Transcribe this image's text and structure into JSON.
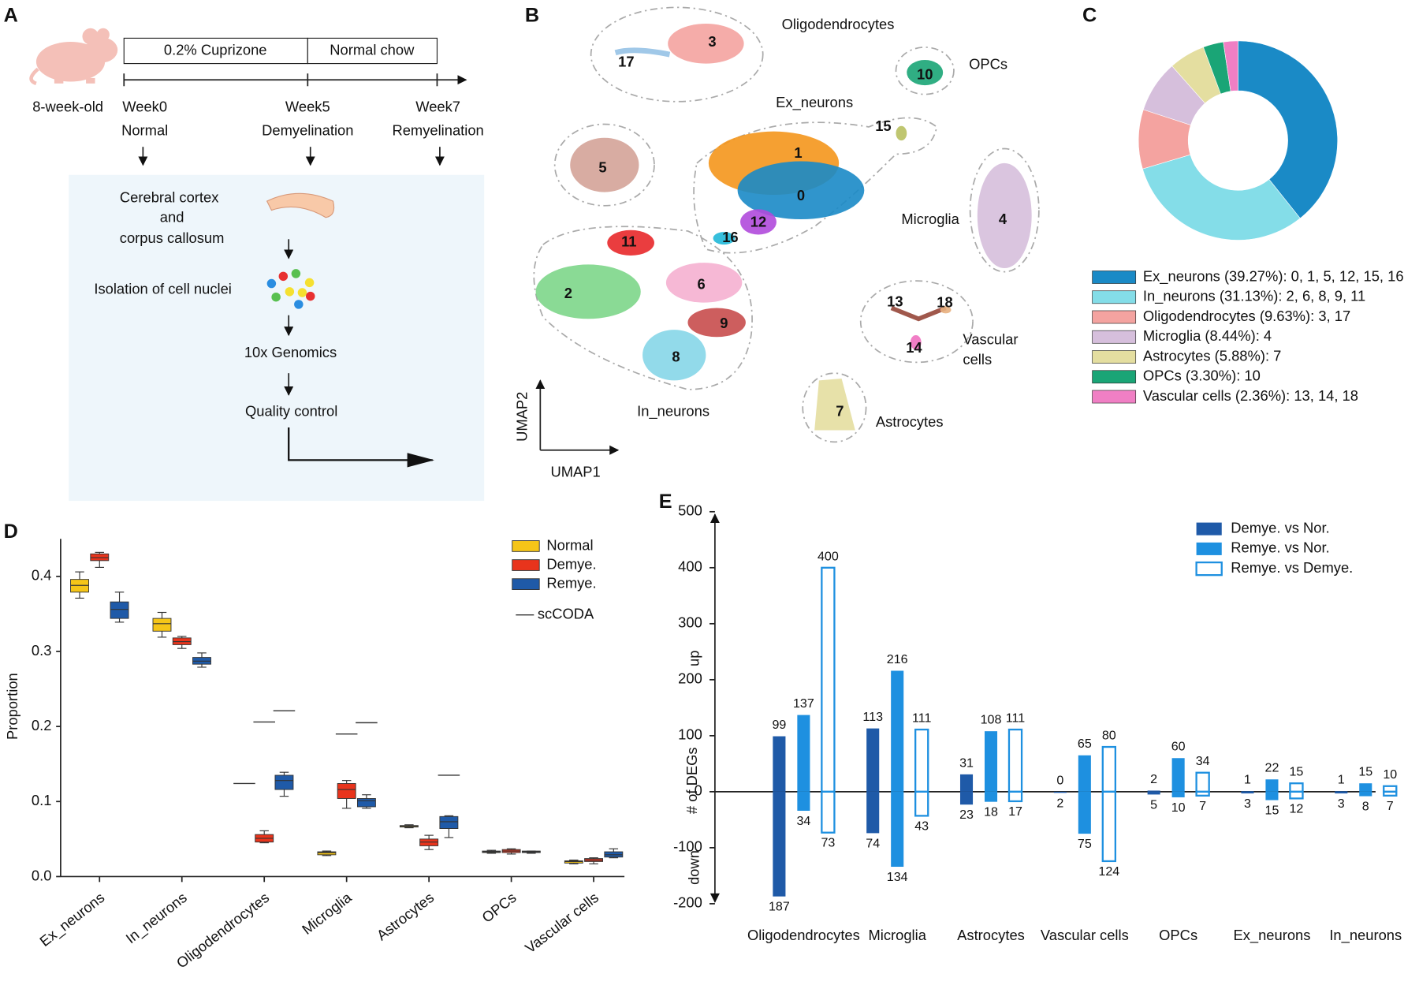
{
  "panels": [
    "A",
    "B",
    "C",
    "D",
    "E"
  ],
  "timeline": {
    "age": "8-week-old",
    "phases": [
      "0.2% Cuprizone",
      "Normal chow"
    ],
    "weeks": [
      {
        "week": "Week0",
        "state": "Normal"
      },
      {
        "week": "Week5",
        "state": "Demyelination"
      },
      {
        "week": "Week7",
        "state": "Remyelination"
      }
    ]
  },
  "workflow": {
    "tissue": [
      "Cerebral cortex",
      "and",
      "corpus callosum"
    ],
    "steps": [
      "Isolation of cell nuclei",
      "10x Genomics",
      "Quality control"
    ]
  },
  "umap": {
    "x_label": "UMAP1",
    "y_label": "UMAP2",
    "cell_types": [
      "Oligodendrocytes",
      "OPCs",
      "Ex_neurons",
      "Microglia",
      "In_neurons",
      "Astrocytes"
    ],
    "vascular_label": [
      "Vascular",
      "cells"
    ],
    "clusters": [
      "0",
      "1",
      "2",
      "3",
      "4",
      "5",
      "6",
      "7",
      "8",
      "9",
      "10",
      "11",
      "12",
      "13",
      "14",
      "15",
      "16",
      "17",
      "18"
    ]
  },
  "chart_data": [
    {
      "type": "pie",
      "categories": [
        "Ex_neurons (39.27%): 0, 1, 5, 12, 15, 16",
        "In_neurons (31.13%): 2, 6, 8, 9, 11",
        "Oligodendrocytes (9.63%): 3, 17",
        "Microglia (8.44%): 4",
        "Astrocytes (5.88%): 7",
        "OPCs (3.30%): 10",
        "Vascular cells (2.36%): 13, 14, 18"
      ],
      "values": [
        39.27,
        31.13,
        9.63,
        8.44,
        5.88,
        3.3,
        2.36
      ],
      "colors": [
        "#1a8ac6",
        "#84dde8",
        "#f4a3a0",
        "#d6bfdc",
        "#e4dea0",
        "#1aa576",
        "#f07fc4"
      ]
    },
    {
      "type": "box",
      "y_label": "Proportion",
      "categories": [
        "Ex_neurons",
        "In_neurons",
        "Oligodendrocytes",
        "Microglia",
        "Astrocytes",
        "OPCs",
        "Vascular cells"
      ],
      "ylim": [
        0,
        0.45
      ],
      "yticks": [
        {
          "value": 0,
          "label": "0.0"
        },
        0.1,
        0.2,
        0.3,
        0.4
      ],
      "sccoda_label": "scCODA",
      "series": [
        {
          "name": "Normal",
          "color": "#f5c518",
          "values": [
            [
              0.371,
              0.379,
              0.388,
              0.396,
              0.406
            ],
            [
              0.319,
              0.327,
              0.337,
              0.344,
              0.352
            ],
            null,
            [
              0.028,
              0.029,
              0.032,
              0.033,
              0.034
            ],
            [
              0.065,
              0.066,
              0.067,
              0.068,
              0.069
            ],
            [
              0.031,
              0.032,
              0.033,
              0.034,
              0.035
            ],
            [
              0.017,
              0.018,
              0.02,
              0.021,
              0.022
            ]
          ],
          "sccoda": [
            null,
            null,
            0.124,
            null,
            null,
            null,
            null
          ]
        },
        {
          "name": "Demye.",
          "color": "#e8341c",
          "values": [
            [
              0.412,
              0.421,
              0.425,
              0.43,
              0.432
            ],
            [
              0.304,
              0.309,
              0.313,
              0.318,
              0.32
            ],
            [
              0.045,
              0.046,
              0.051,
              0.056,
              0.061
            ],
            [
              0.091,
              0.104,
              0.116,
              0.124,
              0.128
            ],
            [
              0.036,
              0.041,
              0.046,
              0.05,
              0.055
            ],
            [
              0.03,
              0.032,
              0.034,
              0.036,
              0.037
            ],
            [
              0.017,
              0.02,
              0.022,
              0.024,
              0.025
            ]
          ],
          "sccoda": [
            null,
            null,
            0.206,
            0.19,
            null,
            null,
            null
          ]
        },
        {
          "name": "Remye.",
          "color": "#1f5aa8",
          "values": [
            [
              0.339,
              0.344,
              0.356,
              0.366,
              0.379
            ],
            [
              0.279,
              0.283,
              0.287,
              0.292,
              0.298
            ],
            [
              0.107,
              0.116,
              0.128,
              0.135,
              0.139
            ],
            [
              0.091,
              0.093,
              0.101,
              0.104,
              0.109
            ],
            [
              0.052,
              0.064,
              0.073,
              0.08,
              0.081
            ],
            [
              0.031,
              0.032,
              0.033,
              0.034,
              0.034
            ],
            [
              0.025,
              0.026,
              0.029,
              0.033,
              0.037
            ]
          ],
          "sccoda": [
            null,
            null,
            0.221,
            0.205,
            0.135,
            null,
            null
          ]
        }
      ]
    },
    {
      "type": "bar",
      "y_label": "# of DEGs",
      "up_label": "up",
      "down_label": "down",
      "categories": [
        "Oligodendrocytes",
        "Microglia",
        "Astrocytes",
        "Vascular cells",
        "OPCs",
        "Ex_neurons",
        "In_neurons"
      ],
      "ylim": [
        -200,
        500
      ],
      "yticks": [
        -200,
        -100,
        0,
        100,
        200,
        300,
        400,
        500
      ],
      "series": [
        {
          "name": "Demye. vs Nor.",
          "color": "#1f5aa8",
          "style": "fill",
          "values": [
            99,
            113,
            31,
            0,
            2,
            1,
            1
          ],
          "down_values": [
            -187,
            -74,
            -23,
            -2,
            -5,
            -3,
            -3
          ],
          "down_value_labels": [
            "187",
            "74",
            "23",
            "2",
            "5",
            "3",
            "3"
          ]
        },
        {
          "name": "Remye. vs Nor.",
          "color": "#1e90e0",
          "style": "fill",
          "values": [
            137,
            216,
            108,
            65,
            60,
            22,
            15
          ],
          "down_values": [
            -34,
            -134,
            -18,
            -75,
            -10,
            -15,
            -8
          ],
          "down_value_labels": [
            "34",
            "134",
            "18",
            "75",
            "10",
            "15",
            "8"
          ]
        },
        {
          "name": "Remye. vs Demye.",
          "color": "#1e90e0",
          "style": "outline",
          "values": [
            400,
            111,
            111,
            80,
            34,
            15,
            10
          ],
          "down_values": [
            -73,
            -43,
            -17,
            -124,
            -7,
            -12,
            -7
          ],
          "down_value_labels": [
            "73",
            "43",
            "17",
            "124",
            "7",
            "12",
            "7"
          ]
        }
      ]
    }
  ]
}
